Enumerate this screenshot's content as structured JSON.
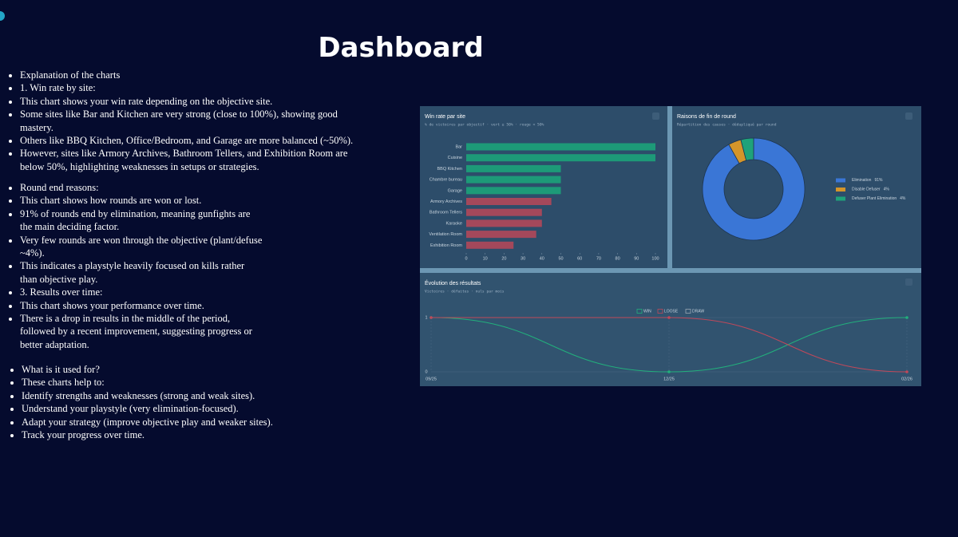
{
  "title": "Dashboard",
  "lists": [
    [
      "Explanation of the charts",
      "1. Win rate by site:",
      "This chart shows your win rate depending on the objective site.",
      "Some sites like Bar and Kitchen are very strong (close to 100%), showing good mastery.",
      "Others like BBQ Kitchen, Office/Bedroom, and Garage are more balanced (~50%).",
      "However, sites like Armory Archives, Bathroom Tellers, and Exhibition Room are below 50%, highlighting weaknesses in setups or strategies."
    ],
    [
      "Round end reasons:",
      "This chart shows how rounds are won or lost.",
      "91% of rounds end by elimination, meaning gunfights are the main deciding factor.",
      "Very few rounds are won through the objective (plant/defuse ~4%).",
      "This indicates a playstyle heavily focused on kills rather than objective play.",
      "3. Results over time:",
      "This chart shows your performance over time.",
      "There is a drop in results in the middle of the period, followed by a recent improvement, suggesting progress or better adaptation."
    ],
    [
      "What is it used for?",
      "These charts help to:",
      "Identify strengths and weaknesses (strong and weak sites).",
      "Understand your playstyle (very elimination-focused).",
      "Adapt your strategy (improve objective play and weaker sites).",
      "Track your progress over time."
    ]
  ],
  "chart_data": [
    {
      "type": "bar",
      "orientation": "horizontal",
      "title": "Win rate par site",
      "subtitle": "% de victoires par objectif · vert ≥ 50% · rouge < 50%",
      "categories": [
        "Bar",
        "Cuisine",
        "BBQ Kitchen",
        "Chambre bureau",
        "Garage",
        "Armory Archives",
        "Bathroom Tellers",
        "Karaoke",
        "Ventilation Room",
        "Exhibition Room"
      ],
      "values": [
        100,
        100,
        50,
        50,
        50,
        45,
        40,
        40,
        37,
        25
      ],
      "colors": [
        "#1d9a78",
        "#1d9a78",
        "#1d9a78",
        "#1d9a78",
        "#1d9a78",
        "#a4485b",
        "#a4485b",
        "#a4485b",
        "#a4485b",
        "#a4485b"
      ],
      "xlim": [
        0,
        100
      ],
      "xticks": [
        0,
        10,
        20,
        30,
        40,
        50,
        60,
        70,
        80,
        90,
        100
      ]
    },
    {
      "type": "pie",
      "donut": true,
      "title": "Raisons de fin de round",
      "subtitle": "Répartition des causes · dédupliqué par round",
      "categories": [
        "Elimination",
        "Disable Defuser",
        "Defuser Plant Elimination"
      ],
      "values": [
        91,
        4,
        4
      ],
      "value_labels": [
        "91%",
        "4%",
        "4%"
      ],
      "colors": [
        "#3a76d6",
        "#d4952a",
        "#1fa27a"
      ],
      "legend": "right"
    },
    {
      "type": "line",
      "title": "Évolution des résultats",
      "subtitle": "Victoires · défaites · nuls par mois",
      "categories": [
        "09/25",
        "12/25",
        "02/26"
      ],
      "series": [
        {
          "name": "WIN",
          "color": "#22b07c",
          "values": [
            1,
            0,
            1
          ]
        },
        {
          "name": "LOOSE",
          "color": "#c0485a",
          "values": [
            1,
            1,
            0
          ]
        },
        {
          "name": "DRAW",
          "color": "#9aa6b2",
          "values": [
            null,
            null,
            null
          ]
        }
      ],
      "ylim": [
        0,
        1
      ],
      "yticks": [
        0,
        1
      ],
      "legend": "top"
    }
  ]
}
